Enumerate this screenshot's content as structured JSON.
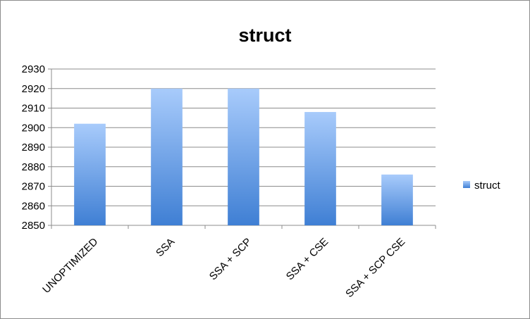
{
  "chart_data": {
    "type": "bar",
    "title": "struct",
    "xlabel": "",
    "ylabel": "",
    "categories": [
      "UNOPTIMIZED",
      "SSA",
      "SSA + SCP",
      "SSA + CSE",
      "SSA + SCP CSE"
    ],
    "series": [
      {
        "name": "struct",
        "values": [
          2902,
          2920,
          2920,
          2908,
          2876
        ],
        "color": "#5b8fde"
      }
    ],
    "ylim": [
      2850,
      2930
    ],
    "yticks": [
      2850,
      2860,
      2870,
      2880,
      2890,
      2900,
      2910,
      2920,
      2930
    ],
    "grid": true,
    "legend_position": "right"
  }
}
